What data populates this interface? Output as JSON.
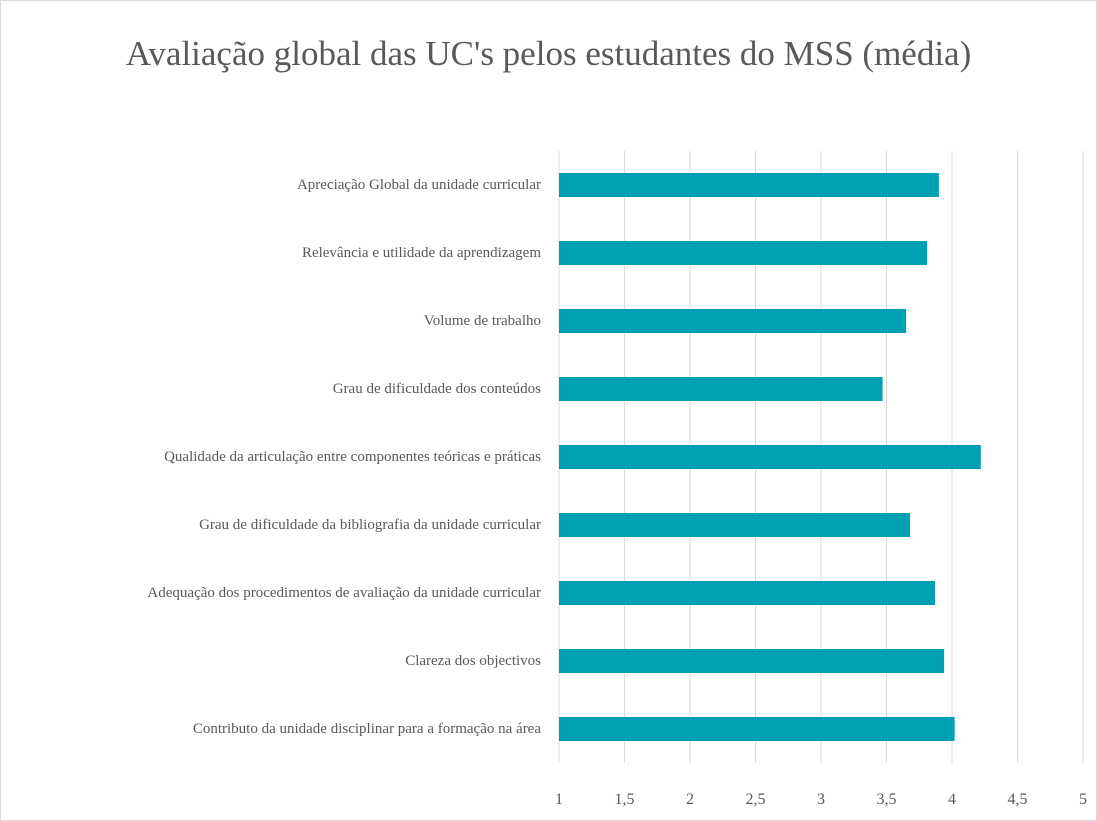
{
  "chart_data": {
    "type": "barh",
    "title": "Avaliação global das UC's pelos estudantes do MSS (média)",
    "categories": [
      "Apreciação Global da unidade curricular",
      "Relevância e utilidade da aprendizagem",
      "Volume de trabalho",
      "Grau de dificuldade dos conteúdos",
      "Qualidade da articulação entre componentes teóricas e práticas",
      "Grau de dificuldade da bibliografia da unidade curricular",
      "Adequação dos procedimentos de avaliação da unidade curricular",
      "Clareza dos objectivos",
      "Contributo da unidade disciplinar para a formação na área"
    ],
    "values": [
      3.9,
      3.81,
      3.65,
      3.47,
      4.22,
      3.68,
      3.87,
      3.94,
      4.02
    ],
    "color": "#00a0b4",
    "xlim": [
      1,
      5
    ],
    "xticks": [
      1,
      {
        "value": 1.5,
        "label": "1,5"
      },
      2,
      {
        "value": 2.5,
        "label": "2,5"
      },
      3,
      {
        "value": 3.5,
        "label": "3,5"
      },
      4,
      {
        "value": 4.5,
        "label": "4,5"
      },
      5
    ],
    "grid": true
  }
}
